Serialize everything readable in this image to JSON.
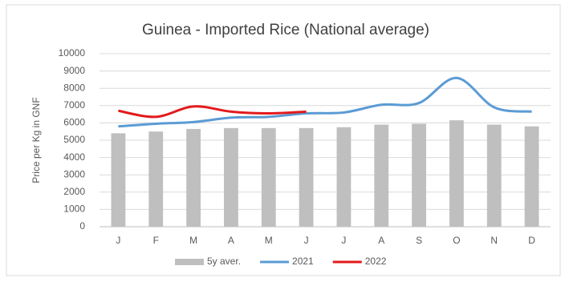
{
  "chart_data": {
    "type": "combo",
    "title": "Guinea - Imported Rice (National average)",
    "y_label": "Price per Kg in GNF",
    "categories": [
      "J",
      "F",
      "M",
      "A",
      "M",
      "J",
      "J",
      "A",
      "S",
      "O",
      "N",
      "D"
    ],
    "series": [
      {
        "name": "5y aver.",
        "type": "bar",
        "color": "#bfbfbf",
        "values": [
          5400,
          5500,
          5650,
          5700,
          5700,
          5700,
          5750,
          5900,
          5950,
          6150,
          5900,
          5800
        ]
      },
      {
        "name": "2021",
        "type": "line",
        "color": "#5b9bd5",
        "values": [
          5800,
          5950,
          6050,
          6300,
          6350,
          6550,
          6600,
          7050,
          7150,
          8600,
          6900,
          6650
        ]
      },
      {
        "name": "2022",
        "type": "line",
        "color": "#e31a1c",
        "values": [
          6700,
          6350,
          6950,
          6650,
          6550,
          6650,
          null,
          null,
          null,
          null,
          null,
          null
        ]
      }
    ],
    "ylim": [
      0,
      10000
    ],
    "yticks": [
      0,
      1000,
      2000,
      3000,
      4000,
      5000,
      6000,
      7000,
      8000,
      9000,
      10000
    ],
    "grid": true,
    "legend": "bottom",
    "smooth": true
  }
}
